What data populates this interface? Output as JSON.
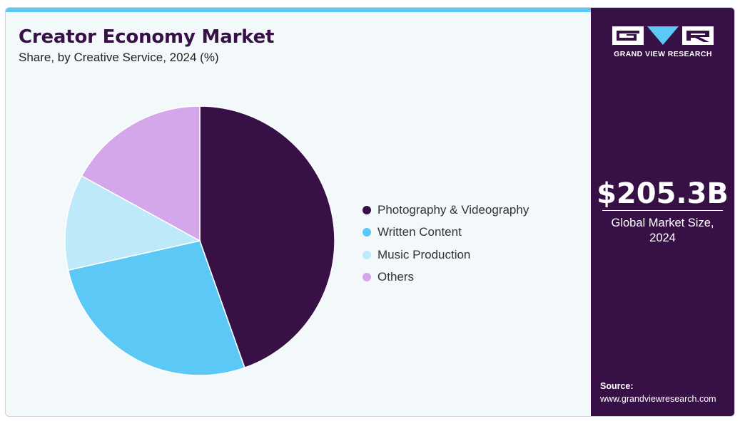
{
  "header": {
    "title": "Creator Economy Market",
    "subtitle": "Share, by Creative Service, 2024 (%)"
  },
  "chart_data": {
    "type": "pie",
    "title": "Creator Economy Market",
    "subtitle": "Share, by Creative Service, 2024 (%)",
    "start_angle_deg": 0,
    "direction": "clockwise",
    "legend_position": "right",
    "categories": [
      "Photography & Videography",
      "Written Content",
      "Music Production",
      "Others"
    ],
    "values": [
      44.6,
      26.9,
      11.5,
      17.0
    ],
    "colors": [
      "#371046",
      "#5bc8f5",
      "#bde9f9",
      "#d4a6ea"
    ]
  },
  "sidebar": {
    "logo_text": "GRAND VIEW RESEARCH",
    "logo_icon": "gvr-logo-icon",
    "market_value": "$205.3B",
    "market_label": "Global Market Size, 2024",
    "source_label": "Source:",
    "source_url": "www.grandviewresearch.com"
  }
}
